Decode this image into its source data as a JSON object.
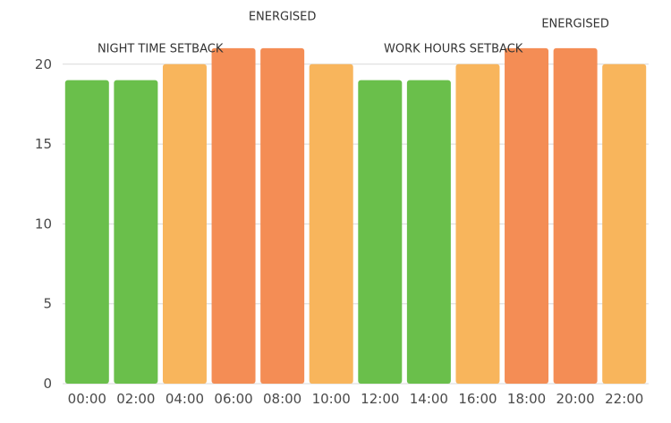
{
  "chart_data": {
    "type": "bar",
    "categories": [
      "00:00",
      "02:00",
      "04:00",
      "06:00",
      "08:00",
      "10:00",
      "12:00",
      "14:00",
      "16:00",
      "18:00",
      "20:00",
      "22:00"
    ],
    "values": [
      19,
      19,
      20,
      21,
      21,
      20,
      19,
      19,
      20,
      21,
      21,
      20
    ],
    "bar_colors": [
      "#6abf4b",
      "#6abf4b",
      "#f8b55c",
      "#f48d55",
      "#f48d55",
      "#f8b55c",
      "#6abf4b",
      "#6abf4b",
      "#f8b55c",
      "#f48d55",
      "#f48d55",
      "#f8b55c"
    ],
    "ylim": [
      0,
      21.5
    ],
    "yticks": [
      0,
      5,
      10,
      15,
      20
    ],
    "grid": true,
    "title": "",
    "xlabel": "",
    "ylabel": "",
    "annotations": [
      {
        "text": "NIGHT TIME SETBACK",
        "category_index": 1.5,
        "y": 20.75
      },
      {
        "text": "ENERGISED",
        "category_index": 4.0,
        "y": 22.75
      },
      {
        "text": "WORK HOURS SETBACK",
        "category_index": 7.5,
        "y": 20.75
      },
      {
        "text": "ENERGISED",
        "category_index": 10.0,
        "y": 22.3
      }
    ]
  }
}
